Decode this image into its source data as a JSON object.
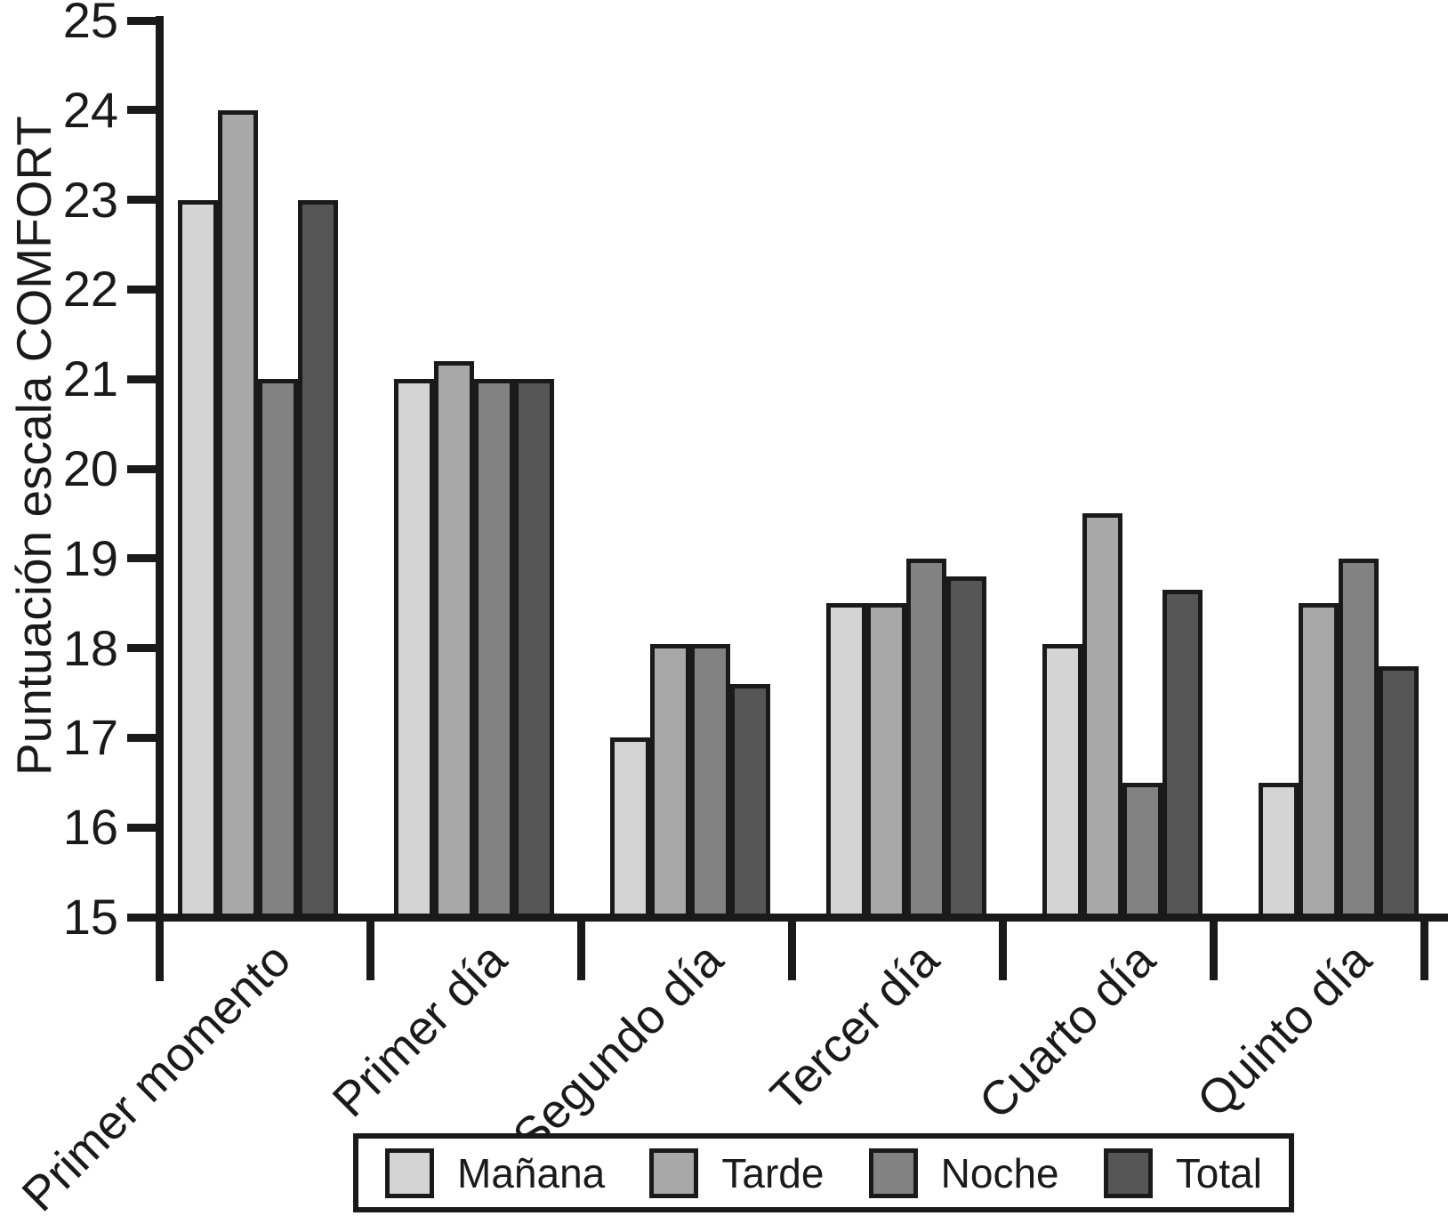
{
  "chart_data": {
    "type": "bar",
    "title": "",
    "xlabel": "",
    "ylabel": "Puntuación escala COMFORT",
    "ylim": [
      15,
      25
    ],
    "y_ticks": [
      15,
      16,
      17,
      18,
      19,
      20,
      21,
      22,
      23,
      24,
      25
    ],
    "grid": false,
    "legend_position": "bottom",
    "categories": [
      "Primer momento",
      "Primer día",
      "Segundo día",
      "Tercer día",
      "Cuarto día",
      "Quinto día"
    ],
    "series": [
      {
        "name": "Mañana",
        "color": "#d4d4d4",
        "values": [
          23,
          21,
          17,
          18.5,
          18.05,
          16.5
        ]
      },
      {
        "name": "Tarde",
        "color": "#a8a8a8",
        "values": [
          24,
          21.2,
          18.05,
          18.5,
          19.5,
          18.5
        ]
      },
      {
        "name": "Noche",
        "color": "#828282",
        "values": [
          21,
          21,
          18.05,
          19,
          16.5,
          19
        ]
      },
      {
        "name": "Total",
        "color": "#565656",
        "values": [
          23,
          21,
          17.6,
          18.8,
          18.65,
          17.8
        ]
      }
    ]
  },
  "colors": {
    "axis": "#1a1a1a",
    "text": "#1a1a1a",
    "background": "#ffffff"
  }
}
